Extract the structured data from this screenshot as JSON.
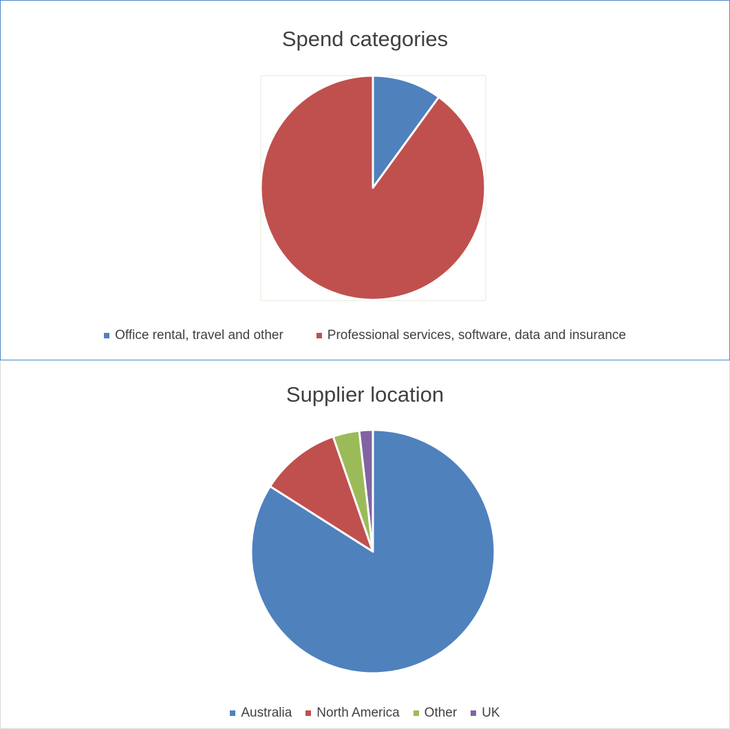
{
  "chart_data": [
    {
      "type": "pie",
      "title": "Spend categories",
      "categories": [
        "Office rental, travel and other",
        "Professional services, software, data and insurance"
      ],
      "values": [
        10,
        90
      ],
      "colors": [
        "#4f81bd",
        "#c0504d"
      ],
      "legend_position": "bottom"
    },
    {
      "type": "pie",
      "title": "Supplier location",
      "categories": [
        "Australia",
        "North America",
        "Other",
        "UK"
      ],
      "values": [
        84,
        10.7,
        3.5,
        1.8
      ],
      "colors": [
        "#4f81bd",
        "#c0504d",
        "#9bbb59",
        "#8064a2"
      ],
      "legend_position": "bottom"
    }
  ]
}
